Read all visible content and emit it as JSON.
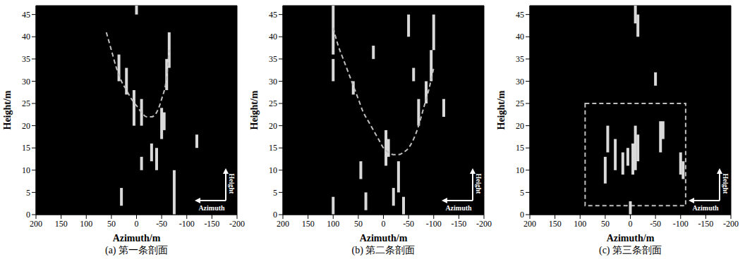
{
  "chart_data": [
    {
      "type": "segments",
      "title": "(a) 第一条剖面",
      "x_label": "Azimuth/m",
      "y_label": "Height/m",
      "xlim": [
        200,
        -200
      ],
      "xticks": [
        200,
        150,
        100,
        50,
        0,
        -50,
        -100,
        -150,
        -200
      ],
      "ylim": [
        0,
        47
      ],
      "yticks": [
        0,
        5,
        10,
        15,
        20,
        25,
        30,
        35,
        40,
        45
      ],
      "grid": false,
      "color": "#d9d9d9",
      "annotations": [
        "Height",
        "Azimuth"
      ],
      "segments": [
        {
          "x": 35,
          "y0": 30,
          "y1": 36
        },
        {
          "x": 20,
          "y0": 27,
          "y1": 33
        },
        {
          "x": 5,
          "y0": 20,
          "y1": 28
        },
        {
          "x": -10,
          "y0": 20,
          "y1": 26
        },
        {
          "x": -50,
          "y0": 17,
          "y1": 24
        },
        {
          "x": -55,
          "y0": 19,
          "y1": 23
        },
        {
          "x": -60,
          "y0": 28,
          "y1": 35
        },
        {
          "x": -65,
          "y0": 33,
          "y1": 41
        },
        {
          "x": -10,
          "y0": 10,
          "y1": 13
        },
        {
          "x": -75,
          "y0": 0,
          "y1": 10
        },
        {
          "x": -40,
          "y0": 10,
          "y1": 15
        },
        {
          "x": -120,
          "y0": 15,
          "y1": 18
        },
        {
          "x": 30,
          "y0": 2,
          "y1": 6
        },
        {
          "x": 0,
          "y0": 45,
          "y1": 47
        },
        {
          "x": -30,
          "y0": 12,
          "y1": 16
        }
      ],
      "curve": {
        "x": [
          60,
          50,
          40,
          30,
          20,
          10,
          0,
          -10,
          -20,
          -30,
          -40,
          -50,
          -60,
          -65
        ],
        "y": [
          41,
          37,
          33,
          30,
          28,
          26,
          24.5,
          23,
          22,
          22,
          23,
          26,
          31,
          37
        ],
        "line_style": "dashed",
        "color": "#bfbfbf"
      }
    },
    {
      "type": "segments",
      "title": "(b) 第二条剖面",
      "x_label": "Azimuth/m",
      "y_label": "Height/m",
      "xlim": [
        200,
        -200
      ],
      "xticks": [
        200,
        150,
        100,
        50,
        0,
        -50,
        -100,
        -150,
        -200
      ],
      "ylim": [
        0,
        47
      ],
      "yticks": [
        0,
        5,
        10,
        15,
        20,
        25,
        30,
        35,
        40,
        45
      ],
      "grid": false,
      "color": "#d9d9d9",
      "annotations": [
        "Height",
        "Azimuth"
      ],
      "segments": [
        {
          "x": 100,
          "y0": 36,
          "y1": 47
        },
        {
          "x": 100,
          "y0": 30,
          "y1": 35
        },
        {
          "x": 60,
          "y0": 27,
          "y1": 30
        },
        {
          "x": -5,
          "y0": 11,
          "y1": 19
        },
        {
          "x": -10,
          "y0": 13,
          "y1": 17
        },
        {
          "x": -30,
          "y0": 5,
          "y1": 12
        },
        {
          "x": -40,
          "y0": 0,
          "y1": 4
        },
        {
          "x": -95,
          "y0": 30,
          "y1": 37
        },
        {
          "x": -100,
          "y0": 37,
          "y1": 45
        },
        {
          "x": -70,
          "y0": 20,
          "y1": 26
        },
        {
          "x": -85,
          "y0": 25,
          "y1": 30
        },
        {
          "x": 100,
          "y0": 0,
          "y1": 4
        },
        {
          "x": 45,
          "y0": 8,
          "y1": 12
        },
        {
          "x": 35,
          "y0": 1,
          "y1": 5
        },
        {
          "x": -50,
          "y0": 40,
          "y1": 45
        },
        {
          "x": -60,
          "y0": 30,
          "y1": 33
        },
        {
          "x": 20,
          "y0": 35,
          "y1": 38
        },
        {
          "x": -120,
          "y0": 22,
          "y1": 26
        },
        {
          "x": -20,
          "y0": 2,
          "y1": 6
        }
      ],
      "curve": {
        "x": [
          100,
          90,
          80,
          70,
          60,
          50,
          40,
          30,
          20,
          10,
          0,
          -10,
          -20,
          -30,
          -40,
          -50,
          -60,
          -70,
          -80,
          -90,
          -100
        ],
        "y": [
          42,
          38,
          35,
          32,
          29,
          26,
          23,
          21,
          19,
          17,
          15,
          14,
          13.5,
          13.5,
          14,
          15,
          17,
          20,
          24,
          28,
          33
        ],
        "line_style": "dashed",
        "color": "#bfbfbf"
      }
    },
    {
      "type": "segments",
      "title": "(c) 第三条剖面",
      "x_label": "Azimuth/m",
      "y_label": "Height/m",
      "xlim": [
        200,
        -200
      ],
      "xticks": [
        200,
        150,
        100,
        50,
        0,
        -50,
        -100,
        -150,
        -200
      ],
      "ylim": [
        0,
        47
      ],
      "yticks": [
        0,
        5,
        10,
        15,
        20,
        25,
        30,
        35,
        40,
        45
      ],
      "grid": false,
      "color": "#d9d9d9",
      "annotations": [
        "Height",
        "Azimuth"
      ],
      "segments": [
        {
          "x": -10,
          "y0": 43,
          "y1": 47
        },
        {
          "x": -15,
          "y0": 40,
          "y1": 45
        },
        {
          "x": -50,
          "y0": 29,
          "y1": 32
        },
        {
          "x": -10,
          "y0": 10,
          "y1": 20
        },
        {
          "x": -15,
          "y0": 12,
          "y1": 18
        },
        {
          "x": -5,
          "y0": 9,
          "y1": 16
        },
        {
          "x": 5,
          "y0": 11,
          "y1": 15
        },
        {
          "x": 15,
          "y0": 9,
          "y1": 14
        },
        {
          "x": 30,
          "y0": 10,
          "y1": 17
        },
        {
          "x": 50,
          "y0": 7,
          "y1": 13
        },
        {
          "x": 45,
          "y0": 14,
          "y1": 20
        },
        {
          "x": -60,
          "y0": 14,
          "y1": 21
        },
        {
          "x": -65,
          "y0": 17,
          "y1": 21
        },
        {
          "x": -100,
          "y0": 9,
          "y1": 14
        },
        {
          "x": -105,
          "y0": 8,
          "y1": 12
        },
        {
          "x": 0,
          "y0": 0,
          "y1": 3
        }
      ],
      "box": {
        "x": [
          90,
          -110
        ],
        "y": [
          2,
          25
        ],
        "line_style": "dashed",
        "color": "#bfbfbf"
      }
    }
  ]
}
